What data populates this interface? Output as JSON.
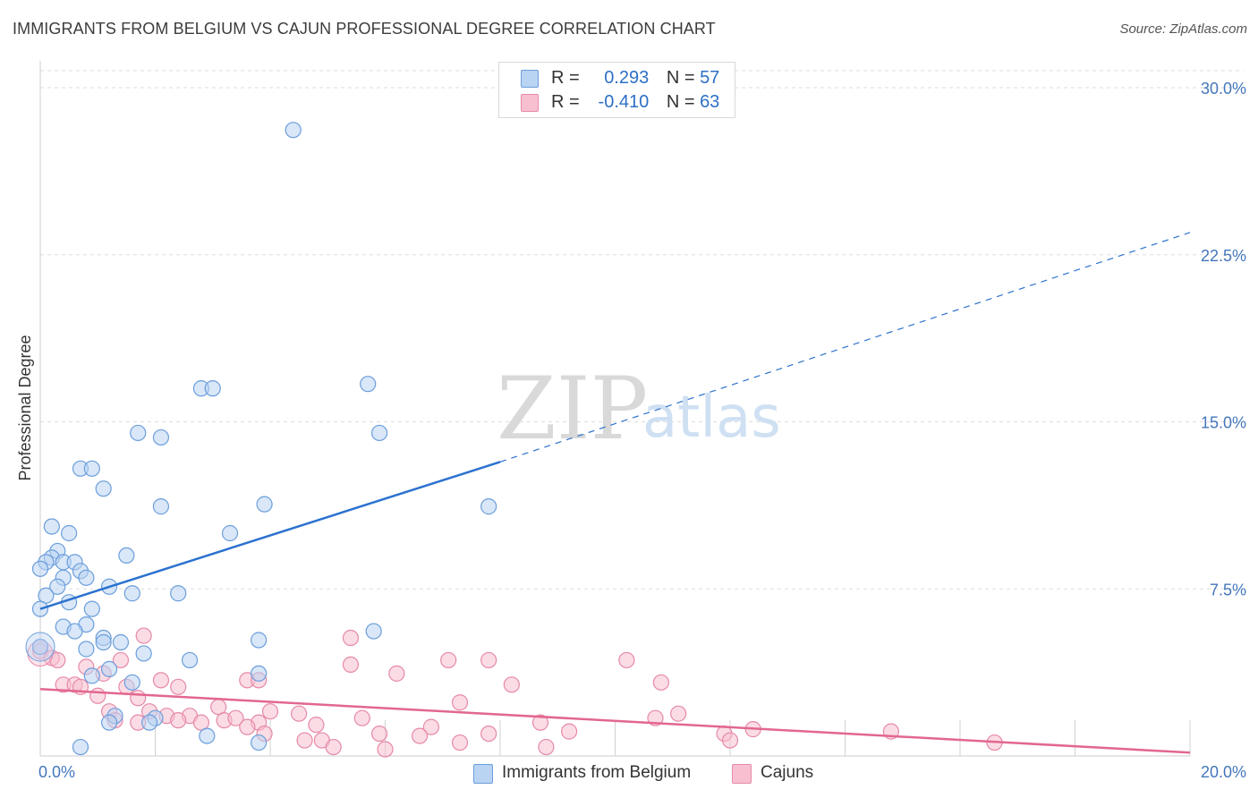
{
  "header": {
    "title": "IMMIGRANTS FROM BELGIUM VS CAJUN PROFESSIONAL DEGREE CORRELATION CHART",
    "source": "Source: ZipAtlas.com"
  },
  "watermark": {
    "zip": "ZIP",
    "atlas": "atlas"
  },
  "legend": {
    "rows": [
      {
        "r_label": "R =",
        "r_value": "0.293",
        "n_label": "N =",
        "n_value": "57"
      },
      {
        "r_label": "R =",
        "r_value": "-0.410",
        "n_label": "N =",
        "n_value": "63"
      }
    ]
  },
  "bottom_legend": {
    "series_a": "Immigrants from Belgium",
    "series_b": "Cajuns"
  },
  "colors": {
    "blue_fill": "#b9d3f3",
    "blue_stroke": "#6b9edc",
    "blue_line": "#2b72cf",
    "pink_fill": "#f7bfd0",
    "pink_stroke": "#e689a8",
    "pink_line": "#e2678f",
    "grid": "#dddddd"
  },
  "chart_data": {
    "type": "scatter",
    "title": "IMMIGRANTS FROM BELGIUM VS CAJUN PROFESSIONAL DEGREE CORRELATION CHART",
    "xlabel": "",
    "ylabel": "Professional Degree",
    "xlim": [
      0,
      20
    ],
    "ylim": [
      0,
      30
    ],
    "x_ticks": [
      {
        "value": 0,
        "label": "0.0%"
      },
      {
        "value": 20,
        "label": "20.0%"
      }
    ],
    "y_ticks": [
      {
        "value": 7.5,
        "label": "7.5%"
      },
      {
        "value": 15,
        "label": "15.0%"
      },
      {
        "value": 22.5,
        "label": "22.5%"
      },
      {
        "value": 30,
        "label": "30.0%"
      }
    ],
    "series": [
      {
        "name": "Immigrants from Belgium",
        "r": 0.293,
        "n": 57,
        "trend": {
          "x0": 0,
          "y0": 6.6,
          "x1": 8.0,
          "y1": 13.2,
          "dash_to_x": 20,
          "dash_to_y": 23.5
        },
        "points": [
          [
            4.4,
            28.1
          ],
          [
            2.8,
            16.5
          ],
          [
            3.0,
            16.5
          ],
          [
            5.7,
            16.7
          ],
          [
            1.7,
            14.5
          ],
          [
            2.1,
            14.3
          ],
          [
            5.9,
            14.5
          ],
          [
            0.7,
            12.9
          ],
          [
            0.9,
            12.9
          ],
          [
            1.1,
            12.0
          ],
          [
            2.1,
            11.2
          ],
          [
            3.9,
            11.3
          ],
          [
            7.8,
            11.2
          ],
          [
            0.2,
            10.3
          ],
          [
            0.5,
            10.0
          ],
          [
            3.3,
            10.0
          ],
          [
            0.3,
            9.2
          ],
          [
            1.5,
            9.0
          ],
          [
            0.2,
            8.9
          ],
          [
            0.1,
            8.7
          ],
          [
            0.4,
            8.7
          ],
          [
            0.6,
            8.7
          ],
          [
            0.0,
            8.4
          ],
          [
            0.7,
            8.3
          ],
          [
            0.4,
            8.0
          ],
          [
            0.8,
            8.0
          ],
          [
            1.2,
            7.6
          ],
          [
            0.3,
            7.6
          ],
          [
            0.1,
            7.2
          ],
          [
            1.6,
            7.3
          ],
          [
            2.4,
            7.3
          ],
          [
            0.5,
            6.9
          ],
          [
            0.0,
            6.6
          ],
          [
            0.9,
            6.6
          ],
          [
            0.4,
            5.8
          ],
          [
            0.8,
            5.9
          ],
          [
            0.6,
            5.6
          ],
          [
            5.8,
            5.6
          ],
          [
            1.1,
            5.3
          ],
          [
            1.4,
            5.1
          ],
          [
            1.1,
            5.1
          ],
          [
            3.8,
            5.2
          ],
          [
            0.8,
            4.8
          ],
          [
            0.0,
            4.9
          ],
          [
            1.8,
            4.6
          ],
          [
            2.6,
            4.3
          ],
          [
            1.2,
            3.9
          ],
          [
            0.9,
            3.6
          ],
          [
            3.8,
            3.7
          ],
          [
            1.6,
            3.3
          ],
          [
            1.3,
            1.8
          ],
          [
            2.0,
            1.7
          ],
          [
            1.2,
            1.5
          ],
          [
            1.9,
            1.5
          ],
          [
            2.9,
            0.9
          ],
          [
            3.8,
            0.6
          ],
          [
            0.7,
            0.4
          ]
        ]
      },
      {
        "name": "Cajuns",
        "r": -0.41,
        "n": 63,
        "trend": {
          "x0": 0,
          "y0": 3.0,
          "x1": 20,
          "y1": 0.15
        },
        "points": [
          [
            0.0,
            4.7
          ],
          [
            0.2,
            4.4
          ],
          [
            0.3,
            4.3
          ],
          [
            1.8,
            5.4
          ],
          [
            5.4,
            5.3
          ],
          [
            1.4,
            4.3
          ],
          [
            0.8,
            4.0
          ],
          [
            5.4,
            4.1
          ],
          [
            7.1,
            4.3
          ],
          [
            7.8,
            4.3
          ],
          [
            10.2,
            4.3
          ],
          [
            6.2,
            3.7
          ],
          [
            1.1,
            3.7
          ],
          [
            2.1,
            3.4
          ],
          [
            3.6,
            3.4
          ],
          [
            3.8,
            3.4
          ],
          [
            10.8,
            3.3
          ],
          [
            0.4,
            3.2
          ],
          [
            0.6,
            3.2
          ],
          [
            0.7,
            3.1
          ],
          [
            1.5,
            3.1
          ],
          [
            2.4,
            3.1
          ],
          [
            8.2,
            3.2
          ],
          [
            1.0,
            2.7
          ],
          [
            1.7,
            2.6
          ],
          [
            7.3,
            2.4
          ],
          [
            3.1,
            2.2
          ],
          [
            1.2,
            2.0
          ],
          [
            1.9,
            2.0
          ],
          [
            4.0,
            2.0
          ],
          [
            4.5,
            1.9
          ],
          [
            11.1,
            1.9
          ],
          [
            2.2,
            1.8
          ],
          [
            2.6,
            1.8
          ],
          [
            5.6,
            1.7
          ],
          [
            10.7,
            1.7
          ],
          [
            1.3,
            1.6
          ],
          [
            2.4,
            1.6
          ],
          [
            3.2,
            1.6
          ],
          [
            3.4,
            1.7
          ],
          [
            8.7,
            1.5
          ],
          [
            1.7,
            1.5
          ],
          [
            2.8,
            1.5
          ],
          [
            3.8,
            1.5
          ],
          [
            4.8,
            1.4
          ],
          [
            3.6,
            1.3
          ],
          [
            6.8,
            1.3
          ],
          [
            9.2,
            1.1
          ],
          [
            12.4,
            1.2
          ],
          [
            14.8,
            1.1
          ],
          [
            5.9,
            1.0
          ],
          [
            3.9,
            1.0
          ],
          [
            7.8,
            1.0
          ],
          [
            11.9,
            1.0
          ],
          [
            6.6,
            0.9
          ],
          [
            4.6,
            0.7
          ],
          [
            4.9,
            0.7
          ],
          [
            12.0,
            0.7
          ],
          [
            7.3,
            0.6
          ],
          [
            16.6,
            0.6
          ],
          [
            5.1,
            0.4
          ],
          [
            8.8,
            0.4
          ],
          [
            6.0,
            0.3
          ]
        ]
      }
    ]
  }
}
